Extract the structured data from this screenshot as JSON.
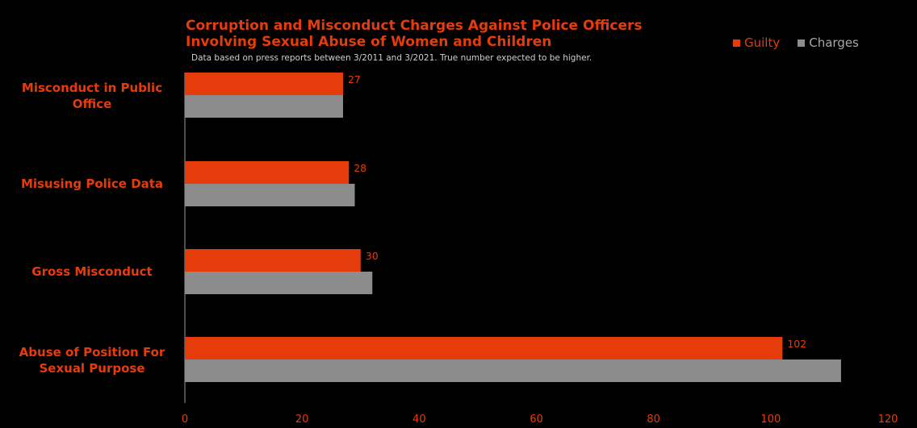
{
  "chart_data": {
    "type": "bar",
    "orientation": "horizontal",
    "title_lines": [
      "Corruption and Misconduct Charges Against Police Officers",
      "Involving Sexual Abuse of Women and Children"
    ],
    "subtitle": "Data based on press reports between 3/2011 and 3/2021. True number expected to be higher.",
    "categories": [
      "Misconduct in Public Office",
      "Misusing Police Data",
      "Gross Misconduct",
      "Abuse of Position For Sexual Purpose"
    ],
    "series": [
      {
        "name": "Guilty",
        "color": "#e63c0b",
        "values": [
          27,
          28,
          30,
          102
        ],
        "data_labels": [
          "27",
          "28",
          "30",
          "102"
        ]
      },
      {
        "name": "Charges",
        "color": "#8c8c8c",
        "values": [
          27,
          29,
          32,
          112
        ]
      }
    ],
    "xlim": [
      0,
      120
    ],
    "x_ticks": [
      "0",
      "20",
      "40",
      "60",
      "80",
      "100",
      "120"
    ],
    "grid": false,
    "legend_position": "top-right",
    "background": "#000000",
    "text_color": "#e63c0b"
  }
}
